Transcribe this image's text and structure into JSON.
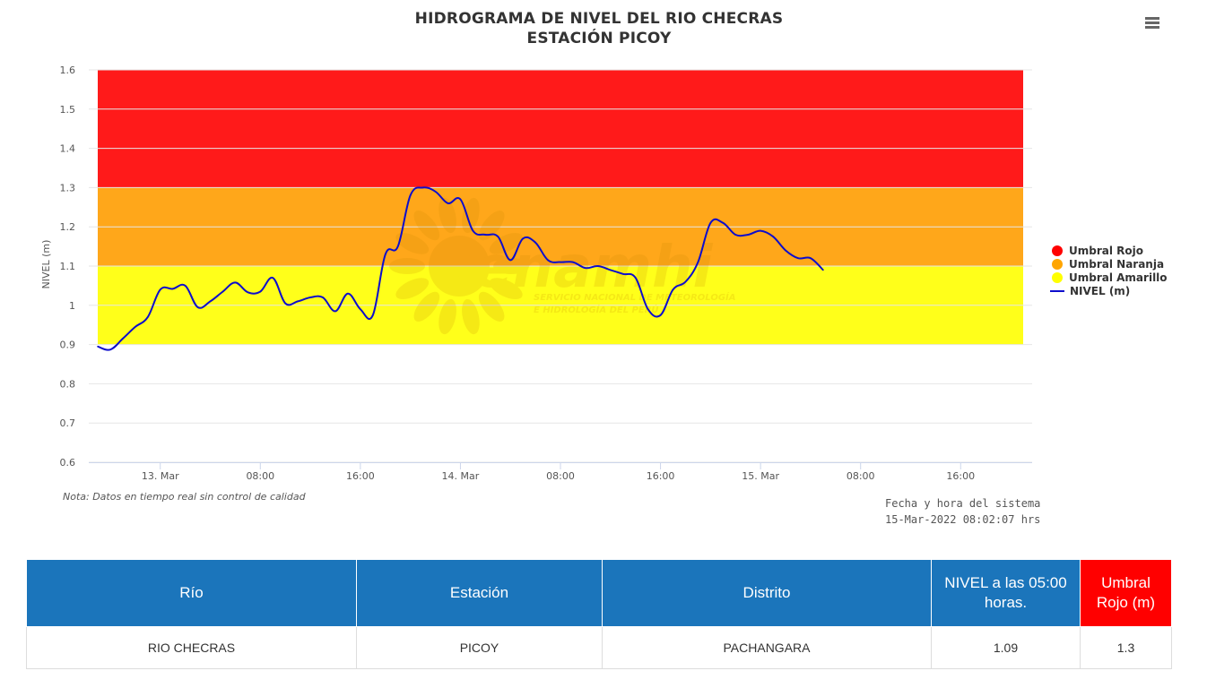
{
  "title_line1": "HIDROGRAMA DE NIVEL DEL RIO CHECRAS",
  "title_line2": "ESTACIÓN PICOY",
  "menu_icon": "hamburger-menu-icon",
  "note": "Nota: Datos en tiempo real sin control de calidad",
  "system_time_label": "Fecha y hora del sistema",
  "system_time_value": "15-Mar-2022 08:02:07 hrs",
  "watermark": {
    "name": "senamhi",
    "line1": "SERVICIO NACIONAL DE METEOROLOGÍA",
    "line2": "E HIDROLOGÍA DEL PERÚ"
  },
  "chart_data": {
    "type": "line",
    "ylabel": "NIVEL (m)",
    "ylim": [
      0.6,
      1.6
    ],
    "y_ticks": [
      0.6,
      0.7,
      0.8,
      0.9,
      1,
      1.1,
      1.2,
      1.3,
      1.4,
      1.5,
      1.6
    ],
    "y_tick_labels": [
      "0.6",
      "0.7",
      "0.8",
      "0.9",
      "1",
      "1.1",
      "1.2",
      "1.3",
      "1.4",
      "1.5",
      "1.6"
    ],
    "x_range": [
      "2022-03-12 19:00",
      "2022-03-15 21:00"
    ],
    "x_ticks": [
      {
        "t": "2022-03-13 00:00",
        "label": "13. Mar"
      },
      {
        "t": "2022-03-13 08:00",
        "label": "08:00"
      },
      {
        "t": "2022-03-13 16:00",
        "label": "16:00"
      },
      {
        "t": "2022-03-14 00:00",
        "label": "14. Mar"
      },
      {
        "t": "2022-03-14 08:00",
        "label": "08:00"
      },
      {
        "t": "2022-03-14 16:00",
        "label": "16:00"
      },
      {
        "t": "2022-03-15 00:00",
        "label": "15. Mar"
      },
      {
        "t": "2022-03-15 08:00",
        "label": "08:00"
      },
      {
        "t": "2022-03-15 16:00",
        "label": "16:00"
      }
    ],
    "grid": true,
    "legend_position": "right",
    "bands": [
      {
        "name": "Umbral Rojo",
        "from": 1.3,
        "to": 1.6,
        "color": "#ff1a1a"
      },
      {
        "name": "Umbral Naranja",
        "from": 1.1,
        "to": 1.3,
        "color": "#ffa71a"
      },
      {
        "name": "Umbral Amarillo",
        "from": 0.9,
        "to": 1.1,
        "color": "#ffff1a"
      }
    ],
    "series": [
      {
        "name": "NIVEL (m)",
        "color": "#0d0dcc",
        "points": [
          [
            "2022-03-12 19:00",
            0.895
          ],
          [
            "2022-03-12 20:00",
            0.887
          ],
          [
            "2022-03-12 21:00",
            0.915
          ],
          [
            "2022-03-12 22:00",
            0.945
          ],
          [
            "2022-03-12 23:00",
            0.97
          ],
          [
            "2022-03-13 00:00",
            1.04
          ],
          [
            "2022-03-13 01:00",
            1.042
          ],
          [
            "2022-03-13 02:00",
            1.05
          ],
          [
            "2022-03-13 03:00",
            0.995
          ],
          [
            "2022-03-13 04:00",
            1.01
          ],
          [
            "2022-03-13 05:00",
            1.035
          ],
          [
            "2022-03-13 06:00",
            1.058
          ],
          [
            "2022-03-13 07:00",
            1.033
          ],
          [
            "2022-03-13 08:00",
            1.035
          ],
          [
            "2022-03-13 09:00",
            1.07
          ],
          [
            "2022-03-13 10:00",
            1.005
          ],
          [
            "2022-03-13 11:00",
            1.01
          ],
          [
            "2022-03-13 12:00",
            1.02
          ],
          [
            "2022-03-13 13:00",
            1.02
          ],
          [
            "2022-03-13 14:00",
            0.985
          ],
          [
            "2022-03-13 15:00",
            1.03
          ],
          [
            "2022-03-13 16:00",
            0.99
          ],
          [
            "2022-03-13 17:00",
            0.975
          ],
          [
            "2022-03-13 18:00",
            1.13
          ],
          [
            "2022-03-13 19:00",
            1.15
          ],
          [
            "2022-03-13 20:00",
            1.28
          ],
          [
            "2022-03-13 21:00",
            1.3
          ],
          [
            "2022-03-13 22:00",
            1.29
          ],
          [
            "2022-03-13 23:00",
            1.26
          ],
          [
            "2022-03-14 00:00",
            1.27
          ],
          [
            "2022-03-14 01:00",
            1.19
          ],
          [
            "2022-03-14 02:00",
            1.18
          ],
          [
            "2022-03-14 03:00",
            1.175
          ],
          [
            "2022-03-14 04:00",
            1.115
          ],
          [
            "2022-03-14 05:00",
            1.17
          ],
          [
            "2022-03-14 06:00",
            1.16
          ],
          [
            "2022-03-14 07:00",
            1.115
          ],
          [
            "2022-03-14 08:00",
            1.11
          ],
          [
            "2022-03-14 09:00",
            1.11
          ],
          [
            "2022-03-14 10:00",
            1.095
          ],
          [
            "2022-03-14 11:00",
            1.1
          ],
          [
            "2022-03-14 12:00",
            1.09
          ],
          [
            "2022-03-14 13:00",
            1.08
          ],
          [
            "2022-03-14 14:00",
            1.07
          ],
          [
            "2022-03-14 15:00",
            0.99
          ],
          [
            "2022-03-14 16:00",
            0.975
          ],
          [
            "2022-03-14 17:00",
            1.04
          ],
          [
            "2022-03-14 18:00",
            1.06
          ],
          [
            "2022-03-14 19:00",
            1.11
          ],
          [
            "2022-03-14 20:00",
            1.21
          ],
          [
            "2022-03-14 21:00",
            1.21
          ],
          [
            "2022-03-14 22:00",
            1.18
          ],
          [
            "2022-03-14 23:00",
            1.18
          ],
          [
            "2022-03-15 00:00",
            1.19
          ],
          [
            "2022-03-15 01:00",
            1.175
          ],
          [
            "2022-03-15 02:00",
            1.14
          ],
          [
            "2022-03-15 03:00",
            1.12
          ],
          [
            "2022-03-15 04:00",
            1.12
          ],
          [
            "2022-03-15 05:00",
            1.09
          ]
        ]
      }
    ]
  },
  "table": {
    "headers": [
      "Río",
      "Estación",
      "Distrito",
      "NIVEL a las 05:00 horas.",
      "Umbral Rojo (m)"
    ],
    "row": [
      "RIO CHECRAS",
      "PICOY",
      "PACHANGARA",
      "1.09",
      "1.3"
    ]
  }
}
